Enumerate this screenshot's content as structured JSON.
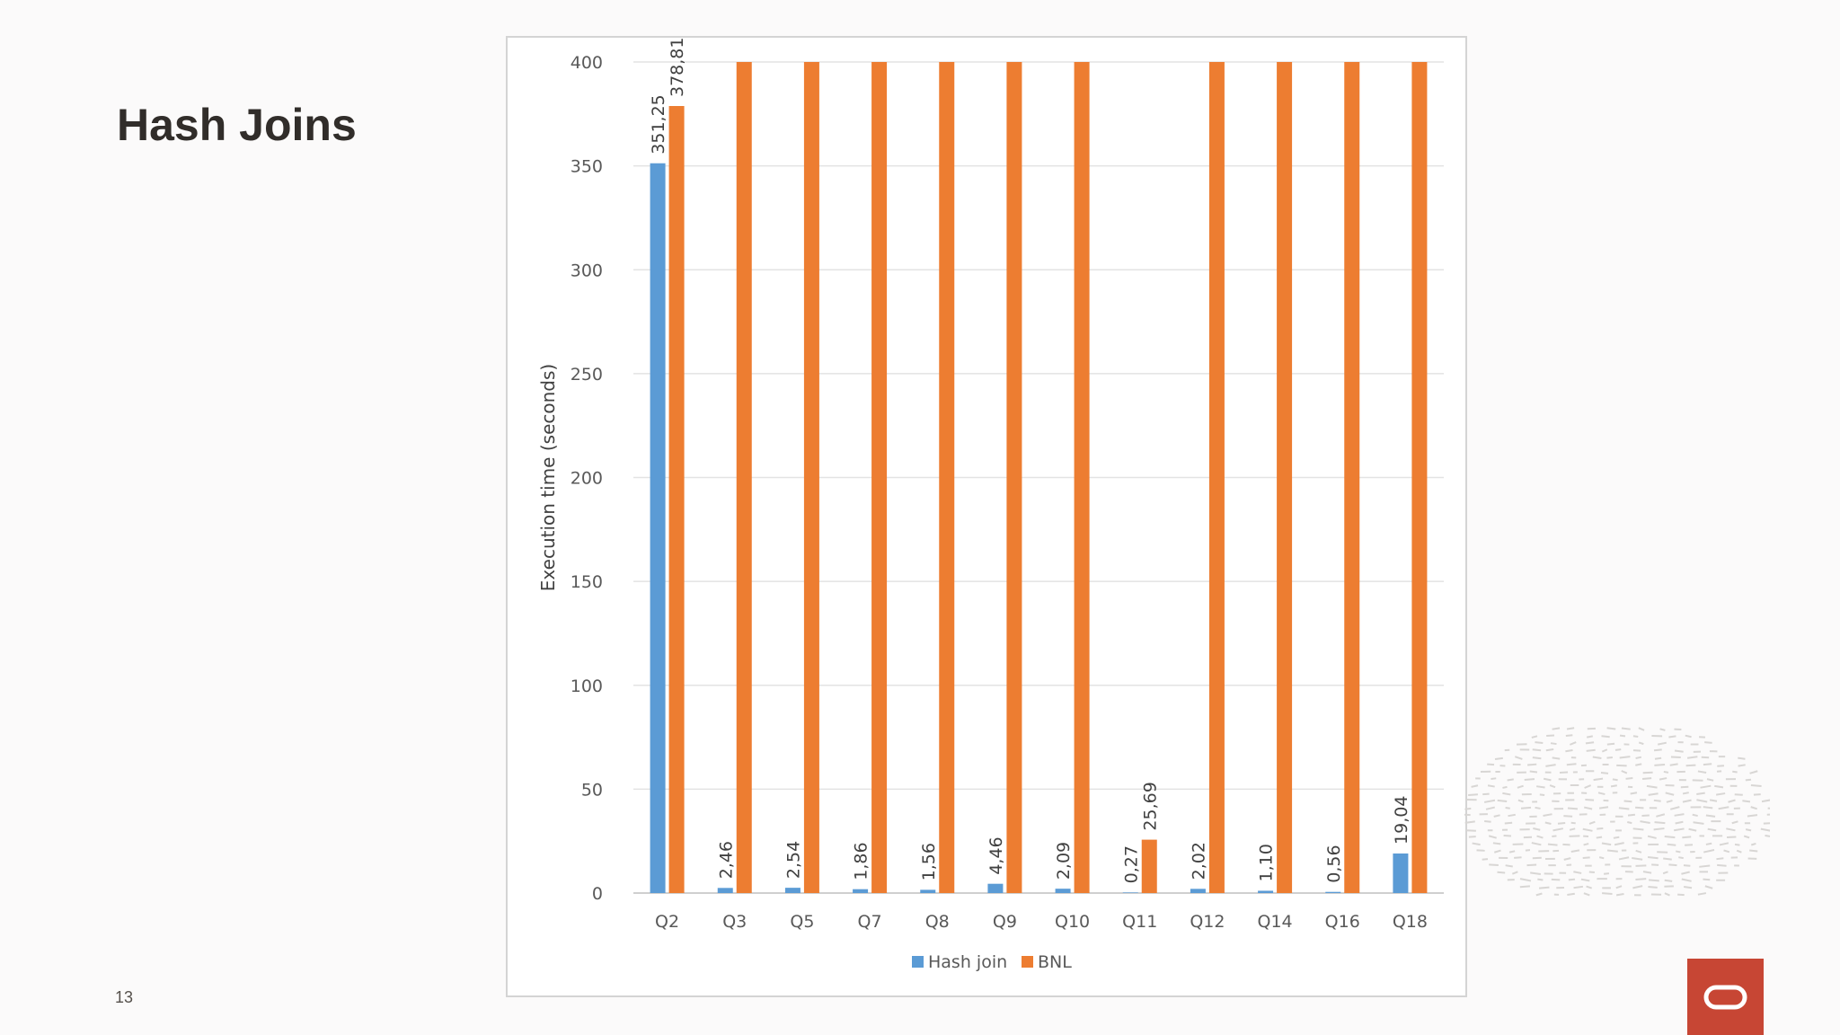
{
  "slide": {
    "title": "Hash Joins",
    "page_number": "13"
  },
  "colors": {
    "hash_join": "#5b9bd5",
    "bnl": "#ed7d31",
    "brand": "#c74634"
  },
  "icons": {
    "logo": "oracle-logo-icon"
  },
  "chart_data": {
    "type": "bar",
    "title": "",
    "xlabel": "",
    "ylabel": "Execution time (seconds)",
    "ylim": [
      0,
      400
    ],
    "yticks": [
      "0",
      "50",
      "100",
      "150",
      "200",
      "250",
      "300",
      "350",
      "400"
    ],
    "categories": [
      "Q2",
      "Q3",
      "Q5",
      "Q7",
      "Q8",
      "Q9",
      "Q10",
      "Q11",
      "Q12",
      "Q14",
      "Q16",
      "Q18"
    ],
    "legend_position": "bottom",
    "series": [
      {
        "name": "Hash join",
        "values": [
          351.25,
          2.46,
          2.54,
          1.86,
          1.56,
          4.46,
          2.09,
          0.27,
          2.02,
          1.1,
          0.56,
          19.04
        ],
        "labels": [
          "351,25",
          "2,46",
          "2,54",
          "1,86",
          "1,56",
          "4,46",
          "2,09",
          "0,27",
          "2,02",
          "1,10",
          "0,56",
          "19,04"
        ]
      },
      {
        "name": "BNL",
        "values": [
          378.81,
          400,
          400,
          400,
          400,
          400,
          400,
          25.69,
          400,
          400,
          400,
          400
        ],
        "labels": [
          "378,81",
          "",
          "",
          "",
          "",
          "",
          "",
          "25,69",
          "",
          "",
          "",
          ""
        ]
      }
    ]
  }
}
